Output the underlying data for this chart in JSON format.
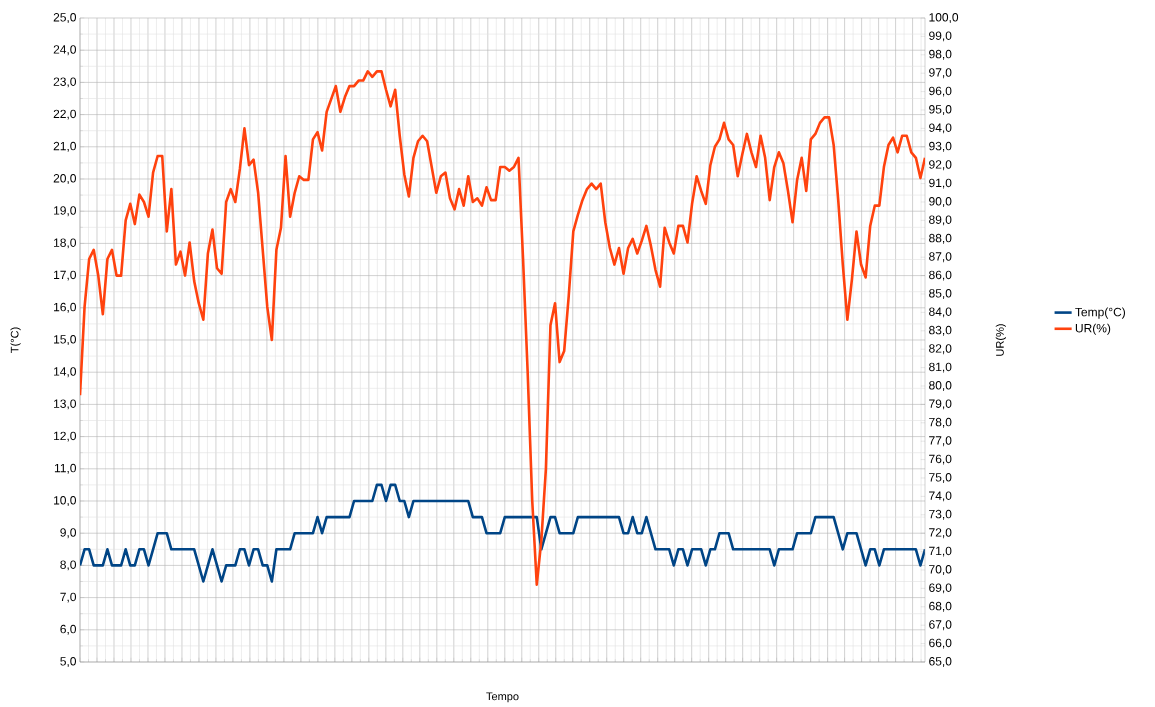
{
  "chart_data": {
    "type": "line",
    "xlabel": "Tempo",
    "ylabel": "T(°C)",
    "y2label": "UR(%)",
    "categories": [
      null,
      null,
      null,
      null,
      null,
      null,
      null,
      null,
      null,
      null,
      null,
      null,
      null,
      null,
      null,
      null,
      null,
      null,
      null,
      null,
      null,
      null,
      null,
      null,
      null,
      null,
      null,
      null,
      null,
      null,
      null,
      null,
      null,
      null,
      null,
      null,
      null,
      null,
      null,
      null,
      null,
      null,
      null,
      null,
      null,
      null,
      null,
      null,
      null,
      null,
      null,
      null,
      null,
      null,
      null,
      null,
      null,
      null,
      null,
      null,
      null,
      null,
      null,
      null,
      null,
      null,
      null,
      null,
      null,
      null,
      null,
      null,
      null,
      null,
      null,
      null,
      null,
      null,
      null,
      null,
      null,
      null,
      null,
      null,
      null,
      null,
      null,
      null,
      null,
      null,
      null,
      null,
      null,
      null,
      null,
      null,
      null,
      null,
      null,
      null,
      null,
      null,
      null,
      null,
      null,
      null,
      null,
      null,
      null,
      null,
      null,
      null,
      null,
      null,
      null,
      null,
      null,
      null,
      null,
      null,
      null,
      null,
      null,
      null,
      null,
      null,
      null,
      null,
      null,
      null,
      null,
      null,
      null,
      null,
      null,
      null,
      null,
      null,
      null,
      null,
      null,
      null,
      null,
      null,
      null,
      null,
      null,
      null,
      null,
      null,
      null,
      null,
      null,
      null,
      null,
      null,
      null,
      null,
      null,
      null,
      null,
      null,
      null,
      null,
      null,
      null,
      null,
      null,
      null,
      null,
      null,
      null,
      null,
      null,
      null,
      null,
      null,
      null,
      null,
      null,
      null,
      null,
      null,
      null,
      null,
      null
    ],
    "series": [
      {
        "name": "Temp(°C)",
        "color": "#004586",
        "values": [
          8.0,
          8.5,
          8.5,
          8.0,
          8.0,
          8.0,
          8.5,
          8.0,
          8.0,
          8.0,
          8.5,
          8.0,
          8.0,
          8.5,
          8.5,
          8.0,
          8.5,
          9.0,
          9.0,
          9.0,
          8.5,
          8.5,
          8.5,
          8.5,
          8.5,
          8.5,
          8.0,
          7.5,
          8.0,
          8.5,
          8.0,
          7.5,
          8.0,
          8.0,
          8.0,
          8.5,
          8.5,
          8.0,
          8.5,
          8.5,
          8.0,
          8.0,
          7.5,
          8.5,
          8.5,
          8.5,
          8.5,
          9.0,
          9.0,
          9.0,
          9.0,
          9.0,
          9.5,
          9.0,
          9.5,
          9.5,
          9.5,
          9.5,
          9.5,
          9.5,
          10.0,
          10.0,
          10.0,
          10.0,
          10.0,
          10.5,
          10.5,
          10.0,
          10.5,
          10.5,
          10.0,
          10.0,
          9.5,
          10.0,
          10.0,
          10.0,
          10.0,
          10.0,
          10.0,
          10.0,
          10.0,
          10.0,
          10.0,
          10.0,
          10.0,
          10.0,
          9.5,
          9.5,
          9.5,
          9.0,
          9.0,
          9.0,
          9.0,
          9.5,
          9.5,
          9.5,
          9.5,
          9.5,
          9.5,
          9.5,
          9.5,
          8.5,
          9.0,
          9.5,
          9.5,
          9.0,
          9.0,
          9.0,
          9.0,
          9.5,
          9.5,
          9.5,
          9.5,
          9.5,
          9.5,
          9.5,
          9.5,
          9.5,
          9.5,
          9.0,
          9.0,
          9.5,
          9.0,
          9.0,
          9.5,
          9.0,
          8.5,
          8.5,
          8.5,
          8.5,
          8.0,
          8.5,
          8.5,
          8.0,
          8.5,
          8.5,
          8.5,
          8.0,
          8.5,
          8.5,
          9.0,
          9.0,
          9.0,
          8.5,
          8.5,
          8.5,
          8.5,
          8.5,
          8.5,
          8.5,
          8.5,
          8.5,
          8.0,
          8.5,
          8.5,
          8.5,
          8.5,
          9.0,
          9.0,
          9.0,
          9.0,
          9.5,
          9.5,
          9.5,
          9.5,
          9.5,
          9.0,
          8.5,
          9.0,
          9.0,
          9.0,
          8.5,
          8.0,
          8.5,
          8.5,
          8.0,
          8.5,
          8.5,
          8.5,
          8.5,
          8.5,
          8.5,
          8.5,
          8.5,
          8.0,
          8.5
        ]
      },
      {
        "name": "UR(%)",
        "color": "#ff420e",
        "axis": "y2",
        "values": [
          79.5,
          84.3,
          86.9,
          87.4,
          86.0,
          83.9,
          86.9,
          87.4,
          86.0,
          86.0,
          89.0,
          89.9,
          88.8,
          90.4,
          90.0,
          89.2,
          91.6,
          92.5,
          92.5,
          88.4,
          90.7,
          86.6,
          87.3,
          86.0,
          87.8,
          85.7,
          84.5,
          83.6,
          87.2,
          88.5,
          86.4,
          86.1,
          90.0,
          90.7,
          90.0,
          91.8,
          94.0,
          92.0,
          92.3,
          90.5,
          87.4,
          84.3,
          82.5,
          87.4,
          88.6,
          92.5,
          89.2,
          90.5,
          91.4,
          91.2,
          91.2,
          93.4,
          93.8,
          92.8,
          94.9,
          95.6,
          96.3,
          94.9,
          95.7,
          96.3,
          96.3,
          96.6,
          96.6,
          97.1,
          96.8,
          97.1,
          97.1,
          96.1,
          95.2,
          96.1,
          93.6,
          91.5,
          90.3,
          92.4,
          93.3,
          93.6,
          93.3,
          91.9,
          90.5,
          91.4,
          91.6,
          90.2,
          89.6,
          90.7,
          89.8,
          91.4,
          90.0,
          90.2,
          89.8,
          90.8,
          90.1,
          90.1,
          91.9,
          91.9,
          91.7,
          91.9,
          92.4,
          86.9,
          80.8,
          73.8,
          69.2,
          71.6,
          75.5,
          83.3,
          84.5,
          81.3,
          81.9,
          84.9,
          88.4,
          89.3,
          90.1,
          90.7,
          91.0,
          90.7,
          91.0,
          88.9,
          87.5,
          86.6,
          87.5,
          86.1,
          87.5,
          88.0,
          87.2,
          87.9,
          88.7,
          87.6,
          86.3,
          85.4,
          88.6,
          87.8,
          87.2,
          88.7,
          88.7,
          87.8,
          89.9,
          91.4,
          90.6,
          89.9,
          92.0,
          93.0,
          93.4,
          94.3,
          93.4,
          93.1,
          91.4,
          92.6,
          93.7,
          92.7,
          91.9,
          93.6,
          92.4,
          90.1,
          91.9,
          92.7,
          92.1,
          90.6,
          88.9,
          91.2,
          92.4,
          90.6,
          93.4,
          93.7,
          94.3,
          94.6,
          94.6,
          93.1,
          90.1,
          86.6,
          83.6,
          85.8,
          88.4,
          86.6,
          85.9,
          88.7,
          89.8,
          89.8,
          91.9,
          93.1,
          93.5,
          92.7,
          93.6,
          93.6,
          92.7,
          92.4,
          91.3,
          92.4
        ]
      }
    ],
    "ylim": [
      5,
      25
    ],
    "yticks": [
      {
        "value": 5,
        "label": "5,0"
      },
      {
        "value": 6,
        "label": "6,0"
      },
      {
        "value": 7,
        "label": "7,0"
      },
      {
        "value": 8,
        "label": "8,0"
      },
      {
        "value": 9,
        "label": "9,0"
      },
      {
        "value": 10,
        "label": "10,0"
      },
      {
        "value": 11,
        "label": "11,0"
      },
      {
        "value": 12,
        "label": "12,0"
      },
      {
        "value": 13,
        "label": "13,0"
      },
      {
        "value": 14,
        "label": "14,0"
      },
      {
        "value": 15,
        "label": "15,0"
      },
      {
        "value": 16,
        "label": "16,0"
      },
      {
        "value": 17,
        "label": "17,0"
      },
      {
        "value": 18,
        "label": "18,0"
      },
      {
        "value": 19,
        "label": "19,0"
      },
      {
        "value": 20,
        "label": "20,0"
      },
      {
        "value": 21,
        "label": "21,0"
      },
      {
        "value": 22,
        "label": "22,0"
      },
      {
        "value": 23,
        "label": "23,0"
      },
      {
        "value": 24,
        "label": "24,0"
      },
      {
        "value": 25,
        "label": "25,0"
      }
    ],
    "y2lim": [
      65,
      100
    ],
    "y2ticks": [
      {
        "value": 65,
        "label": "65,0"
      },
      {
        "value": 66,
        "label": "66,0"
      },
      {
        "value": 67,
        "label": "67,0"
      },
      {
        "value": 68,
        "label": "68,0"
      },
      {
        "value": 69,
        "label": "69,0"
      },
      {
        "value": 70,
        "label": "70,0"
      },
      {
        "value": 71,
        "label": "71,0"
      },
      {
        "value": 72,
        "label": "72,0"
      },
      {
        "value": 73,
        "label": "73,0"
      },
      {
        "value": 74,
        "label": "74,0"
      },
      {
        "value": 75,
        "label": "75,0"
      },
      {
        "value": 76,
        "label": "76,0"
      },
      {
        "value": 77,
        "label": "77,0"
      },
      {
        "value": 78,
        "label": "78,0"
      },
      {
        "value": 79,
        "label": "79,0"
      },
      {
        "value": 80,
        "label": "80,0"
      },
      {
        "value": 81,
        "label": "81,0"
      },
      {
        "value": 82,
        "label": "82,0"
      },
      {
        "value": 83,
        "label": "83,0"
      },
      {
        "value": 84,
        "label": "84,0"
      },
      {
        "value": 85,
        "label": "85,0"
      },
      {
        "value": 86,
        "label": "86,0"
      },
      {
        "value": 87,
        "label": "87,0"
      },
      {
        "value": 88,
        "label": "88,0"
      },
      {
        "value": 89,
        "label": "89,0"
      },
      {
        "value": 90,
        "label": "90,0"
      },
      {
        "value": 91,
        "label": "91,0"
      },
      {
        "value": 92,
        "label": "92,0"
      },
      {
        "value": 93,
        "label": "93,0"
      },
      {
        "value": 94,
        "label": "94,0"
      },
      {
        "value": 95,
        "label": "95,0"
      },
      {
        "value": 96,
        "label": "96,0"
      },
      {
        "value": 97,
        "label": "97,0"
      },
      {
        "value": 98,
        "label": "98,0"
      },
      {
        "value": 99,
        "label": "99,0"
      },
      {
        "value": 100,
        "label": "100,0"
      }
    ],
    "grid": true,
    "legend": "right",
    "tick_labels": "y"
  }
}
